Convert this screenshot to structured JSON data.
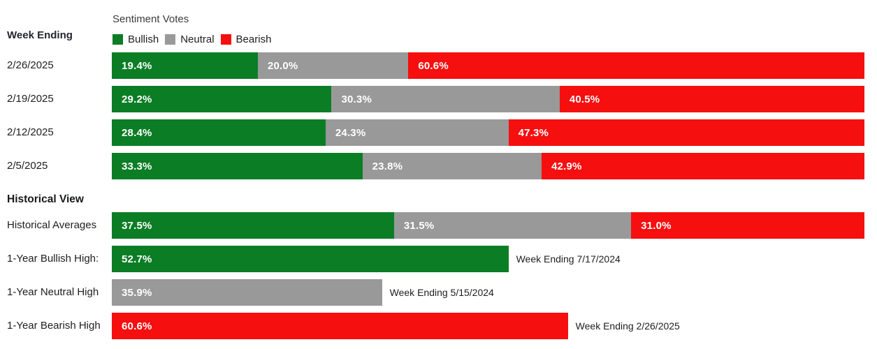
{
  "legend": {
    "title": "Sentiment Votes",
    "items": [
      {
        "label": "Bullish",
        "color": "#0b7d25"
      },
      {
        "label": "Neutral",
        "color": "#999999"
      },
      {
        "label": "Bearish",
        "color": "#f50f0f"
      }
    ]
  },
  "colors": {
    "bullish": "#0b7d25",
    "neutral": "#999999",
    "bearish": "#f50f0f",
    "value_label": "#ffffff",
    "text": "#1e1e1e"
  },
  "chart_data": {
    "type": "bar",
    "orientation": "horizontal",
    "stacked": true,
    "unit": "percent",
    "xlim": [
      0,
      100
    ],
    "grid": false,
    "legend_position": "top",
    "legend_entries": [
      "Bullish",
      "Neutral",
      "Bearish"
    ],
    "weekly": {
      "section_label": "Week Ending",
      "rows": [
        {
          "label": "2/26/2025",
          "segments": [
            {
              "series": "bullish",
              "value": 19.4
            },
            {
              "series": "neutral",
              "value": 20.0
            },
            {
              "series": "bearish",
              "value": 60.6
            }
          ]
        },
        {
          "label": "2/19/2025",
          "segments": [
            {
              "series": "bullish",
              "value": 29.2
            },
            {
              "series": "neutral",
              "value": 30.3
            },
            {
              "series": "bearish",
              "value": 40.5
            }
          ]
        },
        {
          "label": "2/12/2025",
          "segments": [
            {
              "series": "bullish",
              "value": 28.4
            },
            {
              "series": "neutral",
              "value": 24.3
            },
            {
              "series": "bearish",
              "value": 47.3
            }
          ]
        },
        {
          "label": "2/5/2025",
          "segments": [
            {
              "series": "bullish",
              "value": 33.3
            },
            {
              "series": "neutral",
              "value": 23.8
            },
            {
              "series": "bearish",
              "value": 42.9
            }
          ]
        }
      ]
    },
    "historical": {
      "section_label": "Historical View",
      "rows": [
        {
          "label": "Historical Averages",
          "segments": [
            {
              "series": "bullish",
              "value": 37.5
            },
            {
              "series": "neutral",
              "value": 31.5
            },
            {
              "series": "bearish",
              "value": 31.0
            }
          ]
        },
        {
          "label": "1-Year Bullish High:",
          "segments": [
            {
              "series": "bullish",
              "value": 52.7
            }
          ],
          "annotation": "Week Ending 7/17/2024"
        },
        {
          "label": "1-Year Neutral High",
          "segments": [
            {
              "series": "neutral",
              "value": 35.9
            }
          ],
          "annotation": "Week Ending 5/15/2024"
        },
        {
          "label": "1-Year Bearish High",
          "segments": [
            {
              "series": "bearish",
              "value": 60.6
            }
          ],
          "annotation": "Week Ending 2/26/2025"
        }
      ]
    }
  }
}
